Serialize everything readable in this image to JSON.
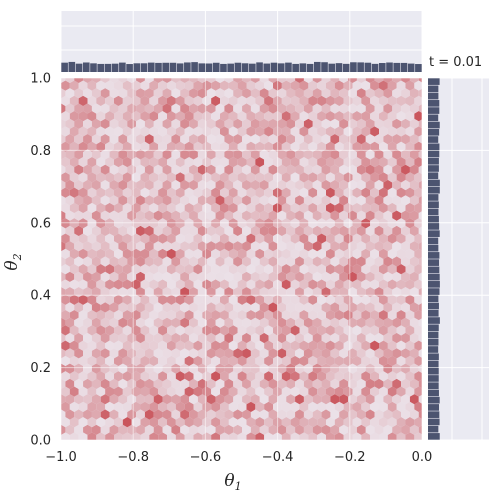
{
  "chart_data": {
    "type": "hexbin",
    "annotation": "t = 0.01",
    "xlabel": "θ",
    "xlabel_sub": "1",
    "ylabel": "θ",
    "ylabel_sub": "2",
    "xlim": [
      -1.0,
      0.0
    ],
    "ylim": [
      0.0,
      1.0
    ],
    "xticks": [
      -1.0,
      -0.8,
      -0.6,
      -0.4,
      -0.2,
      0.0
    ],
    "xtick_labels": [
      "−1.0",
      "−0.8",
      "−0.6",
      "−0.4",
      "−0.2",
      "0.0"
    ],
    "yticks": [
      0.0,
      0.2,
      0.4,
      0.6,
      0.8,
      1.0
    ],
    "ytick_labels": [
      "0.0",
      "0.2",
      "0.4",
      "0.6",
      "0.8",
      "1.0"
    ],
    "grid": true,
    "distribution": "uniform over [-1, 0] × [0, 1]",
    "marginal_x_density": 0.04,
    "marginal_y_density": 0.06,
    "colors": {
      "background": "#eaeaf2",
      "grid": "#ffffff",
      "hex_low": "#ebe1e8",
      "hex_high": "#c43c43",
      "marginal_bars": "#4c5470"
    }
  }
}
